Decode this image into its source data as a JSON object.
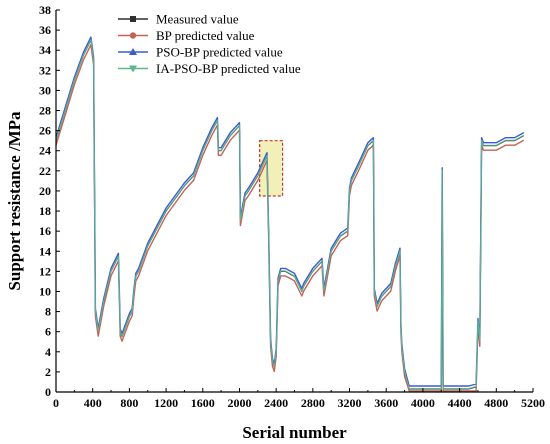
{
  "chart_data": {
    "type": "line",
    "title": "",
    "xlabel": "Serial number",
    "ylabel": "Support resistance /MPa",
    "xlim": [
      0,
      5200
    ],
    "ylim": [
      0,
      38
    ],
    "x_ticks": [
      "0",
      "400",
      "800",
      "1200",
      "1600",
      "2000",
      "2400",
      "2800",
      "3200",
      "3600",
      "4000",
      "4400",
      "4800",
      "5200"
    ],
    "y_ticks": [
      "0",
      "2",
      "4",
      "6",
      "8",
      "10",
      "12",
      "14",
      "16",
      "18",
      "20",
      "22",
      "24",
      "26",
      "28",
      "30",
      "32",
      "34",
      "36",
      "38"
    ],
    "grid": false,
    "legend_position": "top-center",
    "highlight_box": {
      "x": [
        2220,
        2470
      ],
      "y": [
        19.5,
        25
      ],
      "fill": "#f2efb8",
      "stroke": "#c0392b"
    },
    "series": [
      {
        "name": "Measured value",
        "color": "#2f2f2f",
        "marker": "square",
        "offset": 0,
        "width": 1.0
      },
      {
        "name": "BP predicted value",
        "color": "#c0645a",
        "marker": "circle",
        "offset": -0.45,
        "width": 1.4
      },
      {
        "name": "PSO-BP predicted value",
        "color": "#3d5bd1",
        "marker": "triangle",
        "offset": 0.3,
        "width": 1.4
      },
      {
        "name": "IA-PSO-BP predicted value",
        "color": "#5cb88a",
        "marker": "triangle-down",
        "offset": 0.05,
        "width": 1.0
      }
    ],
    "x": [
      0,
      100,
      200,
      300,
      380,
      410,
      430,
      460,
      480,
      520,
      600,
      680,
      690,
      700,
      720,
      800,
      830,
      850,
      870,
      900,
      1000,
      1200,
      1400,
      1500,
      1600,
      1700,
      1760,
      1770,
      1800,
      1900,
      2000,
      2010,
      2040,
      2060,
      2100,
      2200,
      2300,
      2320,
      2340,
      2360,
      2380,
      2400,
      2420,
      2450,
      2500,
      2600,
      2680,
      2700,
      2800,
      2900,
      2920,
      3000,
      3100,
      3180,
      3200,
      3220,
      3300,
      3400,
      3460,
      3470,
      3500,
      3550,
      3600,
      3650,
      3700,
      3750,
      3760,
      3770,
      3800,
      3850,
      3900,
      4000,
      4100,
      4200,
      4210,
      4220,
      4250,
      4300,
      4400,
      4500,
      4580,
      4600,
      4620,
      4640,
      4660,
      4700,
      4800,
      4900,
      5000,
      5100
    ],
    "y": [
      25,
      28,
      31,
      33.5,
      35,
      33,
      8,
      6,
      7,
      9,
      12,
      13.5,
      10,
      6,
      5.5,
      7.5,
      8,
      10,
      11.5,
      12,
      14.5,
      18,
      20.5,
      21.5,
      24,
      26,
      27,
      24,
      24,
      25.5,
      26.5,
      17,
      18.5,
      19.5,
      20,
      21.5,
      23.5,
      15,
      5,
      3,
      2.5,
      4,
      11,
      12,
      12,
      11.5,
      10,
      10.5,
      12,
      13,
      10,
      14,
      15.5,
      16,
      20,
      21,
      22.5,
      24.5,
      25,
      10,
      8.5,
      9.5,
      10,
      10.5,
      12.5,
      14,
      6.5,
      4.5,
      2,
      0.3,
      0.3,
      0.3,
      0.3,
      0.3,
      22,
      0.3,
      0.3,
      0.3,
      0.3,
      0.3,
      0.5,
      7,
      5,
      25,
      24.5,
      24.5,
      24.5,
      25,
      25,
      25.5
    ]
  }
}
